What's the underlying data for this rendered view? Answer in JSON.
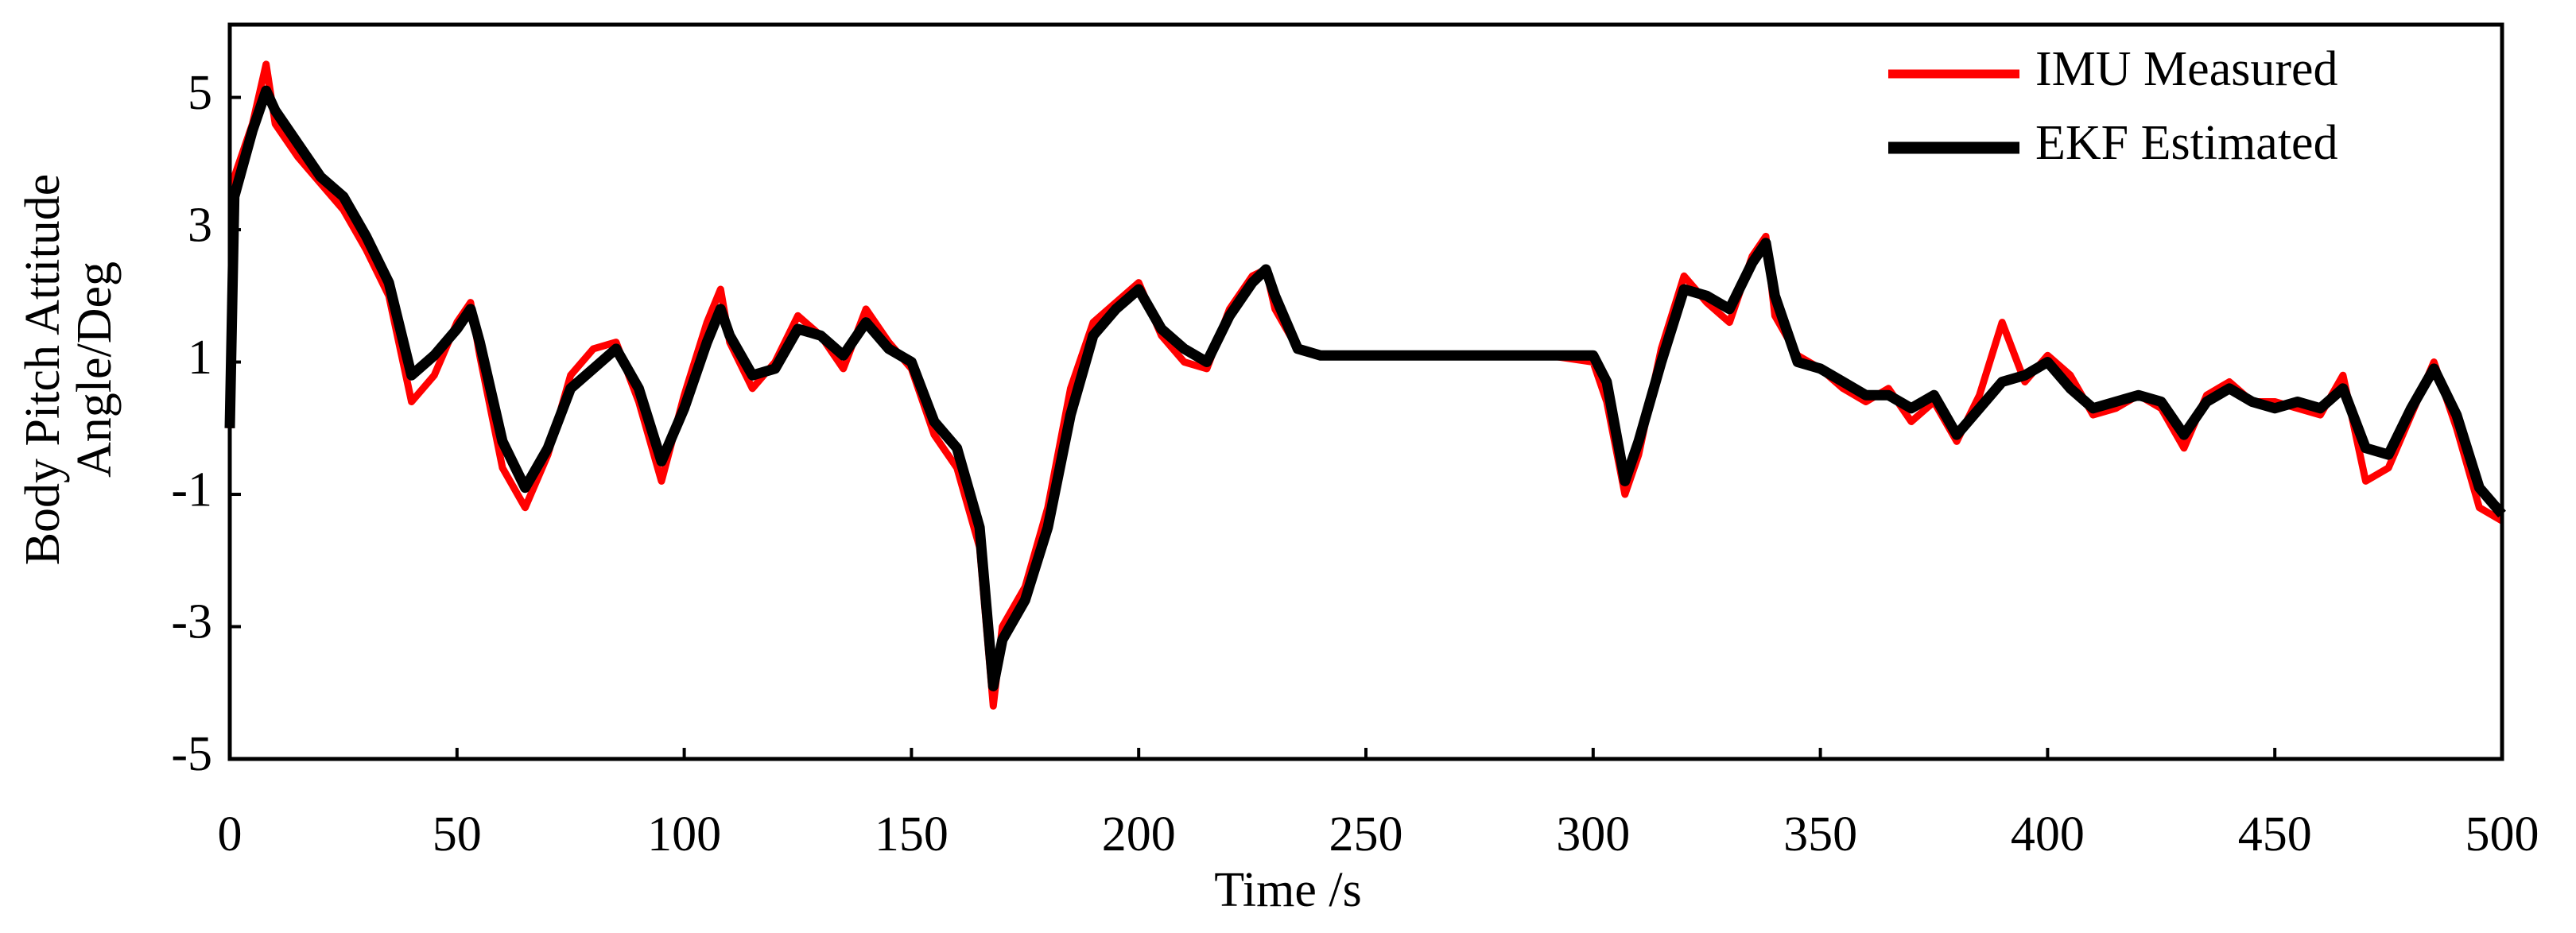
{
  "chart_data": {
    "type": "line",
    "xlabel": "Time /s",
    "ylabel": [
      "Body Pitch Attitude",
      "Angle/Deg"
    ],
    "x": [
      0,
      1,
      5,
      8,
      10,
      15,
      20,
      25,
      30,
      35,
      40,
      45,
      50,
      53,
      55,
      60,
      65,
      70,
      75,
      80,
      85,
      90,
      95,
      100,
      105,
      108,
      110,
      115,
      120,
      125,
      130,
      135,
      140,
      145,
      150,
      155,
      160,
      165,
      168,
      170,
      175,
      180,
      185,
      190,
      195,
      200,
      205,
      210,
      215,
      220,
      225,
      228,
      230,
      235,
      240,
      250,
      260,
      270,
      280,
      290,
      300,
      303,
      307,
      310,
      315,
      320,
      325,
      330,
      335,
      338,
      340,
      345,
      350,
      355,
      360,
      365,
      370,
      375,
      380,
      385,
      390,
      395,
      400,
      405,
      410,
      415,
      420,
      425,
      430,
      435,
      440,
      445,
      450,
      455,
      460,
      465,
      470,
      475,
      480,
      485,
      490,
      495,
      500
    ],
    "series": [
      {
        "name": "IMU Measured",
        "color": "#ff0000",
        "values": [
          0,
          3.8,
          4.6,
          5.5,
          4.6,
          4.1,
          3.7,
          3.3,
          2.7,
          2.0,
          0.4,
          0.8,
          1.6,
          1.9,
          1.1,
          -0.6,
          -1.2,
          -0.4,
          0.8,
          1.2,
          1.3,
          0.4,
          -0.8,
          0.5,
          1.6,
          2.1,
          1.3,
          0.6,
          1.0,
          1.7,
          1.4,
          0.9,
          1.8,
          1.3,
          0.9,
          -0.1,
          -0.6,
          -1.8,
          -4.2,
          -3.0,
          -2.4,
          -1.2,
          0.6,
          1.6,
          1.9,
          2.2,
          1.4,
          1.0,
          0.9,
          1.8,
          2.3,
          2.4,
          1.8,
          1.2,
          1.1,
          1.1,
          1.1,
          1.1,
          1.1,
          1.1,
          1.0,
          0.4,
          -1.0,
          -0.4,
          1.2,
          2.3,
          1.9,
          1.6,
          2.6,
          2.9,
          1.7,
          1.1,
          0.9,
          0.6,
          0.4,
          0.6,
          0.1,
          0.4,
          -0.2,
          0.5,
          1.6,
          0.7,
          1.1,
          0.8,
          0.2,
          0.3,
          0.5,
          0.3,
          -0.3,
          0.5,
          0.7,
          0.4,
          0.4,
          0.3,
          0.2,
          0.8,
          -0.8,
          -0.6,
          0.2,
          1.0,
          0.0,
          -1.2,
          -1.4
        ]
      },
      {
        "name": "EKF Estimated",
        "color": "#000000",
        "values": [
          0,
          3.5,
          4.5,
          5.1,
          4.8,
          4.3,
          3.8,
          3.5,
          2.9,
          2.2,
          0.8,
          1.1,
          1.5,
          1.8,
          1.3,
          -0.2,
          -0.9,
          -0.3,
          0.6,
          0.9,
          1.2,
          0.6,
          -0.5,
          0.3,
          1.3,
          1.8,
          1.4,
          0.8,
          0.9,
          1.5,
          1.4,
          1.1,
          1.6,
          1.2,
          1.0,
          0.1,
          -0.3,
          -1.5,
          -3.9,
          -3.2,
          -2.6,
          -1.5,
          0.2,
          1.4,
          1.8,
          2.1,
          1.5,
          1.2,
          1.0,
          1.7,
          2.2,
          2.4,
          2.0,
          1.2,
          1.1,
          1.1,
          1.1,
          1.1,
          1.1,
          1.1,
          1.1,
          0.7,
          -0.8,
          -0.2,
          1.0,
          2.1,
          2.0,
          1.8,
          2.5,
          2.8,
          2.0,
          1.0,
          0.9,
          0.7,
          0.5,
          0.5,
          0.3,
          0.5,
          -0.1,
          0.3,
          0.7,
          0.8,
          1.0,
          0.6,
          0.3,
          0.4,
          0.5,
          0.4,
          -0.1,
          0.4,
          0.6,
          0.4,
          0.3,
          0.4,
          0.3,
          0.6,
          -0.3,
          -0.4,
          0.3,
          0.9,
          0.2,
          -0.9,
          -1.3
        ]
      }
    ],
    "xlim": [
      0,
      500
    ],
    "xticks": [
      0,
      50,
      100,
      150,
      200,
      250,
      300,
      350,
      400,
      450,
      500
    ],
    "ylim": [
      -5,
      6.1
    ],
    "yticks": [
      -5,
      -3,
      -1,
      1,
      3,
      5
    ],
    "legend": "upper right"
  }
}
